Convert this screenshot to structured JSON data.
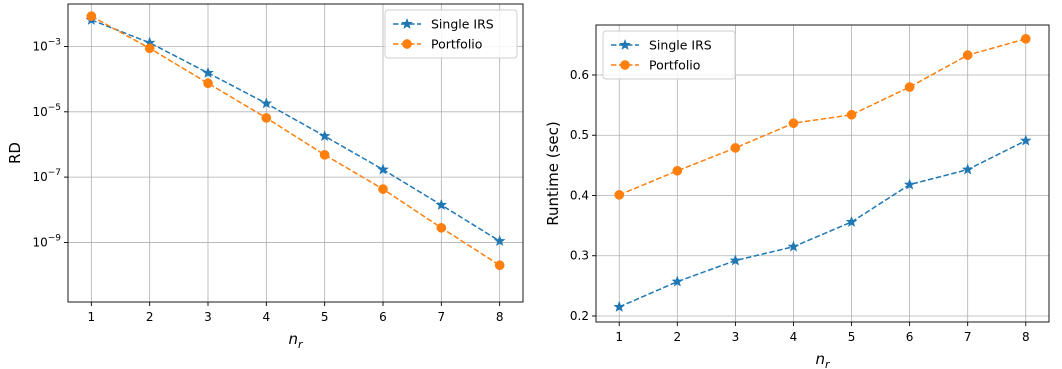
{
  "chart_data": [
    {
      "type": "line",
      "title": "",
      "xlabel": "n",
      "xlabel_sub": "r",
      "ylabel": "RD",
      "yscale": "log",
      "xlim": [
        0.6,
        8.4
      ],
      "ylim": [
        1.5e-11,
        0.02
      ],
      "x": [
        1,
        2,
        3,
        4,
        5,
        6,
        7,
        8
      ],
      "xticks": [
        "1",
        "2",
        "3",
        "4",
        "5",
        "6",
        "7",
        "8"
      ],
      "yticks": [
        {
          "value": 0.001,
          "base": "10",
          "exp": "−3"
        },
        {
          "value": 1e-05,
          "base": "10",
          "exp": "−5"
        },
        {
          "value": 1e-07,
          "base": "10",
          "exp": "−7"
        },
        {
          "value": 1e-09,
          "base": "10",
          "exp": "−9"
        }
      ],
      "grid": true,
      "legend_position": "top-right",
      "series": [
        {
          "name": "Single IRS",
          "color": "#1f77b4",
          "marker": "star",
          "values": [
            0.0065,
            0.0013,
            0.000155,
            1.8e-05,
            1.8e-06,
            1.7e-07,
            1.4e-08,
            1.1e-09
          ]
        },
        {
          "name": "Portfolio",
          "color": "#ff7f0e",
          "marker": "circle",
          "values": [
            0.0085,
            0.00088,
            7.5e-05,
            6.5e-06,
            4.8e-07,
            4.3e-08,
            2.8e-09,
            2e-10
          ]
        }
      ]
    },
    {
      "type": "line",
      "title": "",
      "xlabel": "n",
      "xlabel_sub": "r",
      "ylabel": "Runtime (sec)",
      "yscale": "linear",
      "xlim": [
        0.6,
        8.4
      ],
      "ylim": [
        0.19,
        0.683
      ],
      "x": [
        1,
        2,
        3,
        4,
        5,
        6,
        7,
        8
      ],
      "xticks": [
        "1",
        "2",
        "3",
        "4",
        "5",
        "6",
        "7",
        "8"
      ],
      "yticks": [
        {
          "value": 0.2,
          "label": "0.2"
        },
        {
          "value": 0.3,
          "label": "0.3"
        },
        {
          "value": 0.4,
          "label": "0.4"
        },
        {
          "value": 0.5,
          "label": "0.5"
        },
        {
          "value": 0.6,
          "label": "0.6"
        }
      ],
      "grid": true,
      "legend_position": "top-left",
      "series": [
        {
          "name": "Single IRS",
          "color": "#1f77b4",
          "marker": "star",
          "values": [
            0.215,
            0.257,
            0.292,
            0.315,
            0.356,
            0.418,
            0.443,
            0.491
          ]
        },
        {
          "name": "Portfolio",
          "color": "#ff7f0e",
          "marker": "circle",
          "values": [
            0.401,
            0.441,
            0.479,
            0.52,
            0.534,
            0.58,
            0.633,
            0.66
          ]
        }
      ]
    }
  ]
}
